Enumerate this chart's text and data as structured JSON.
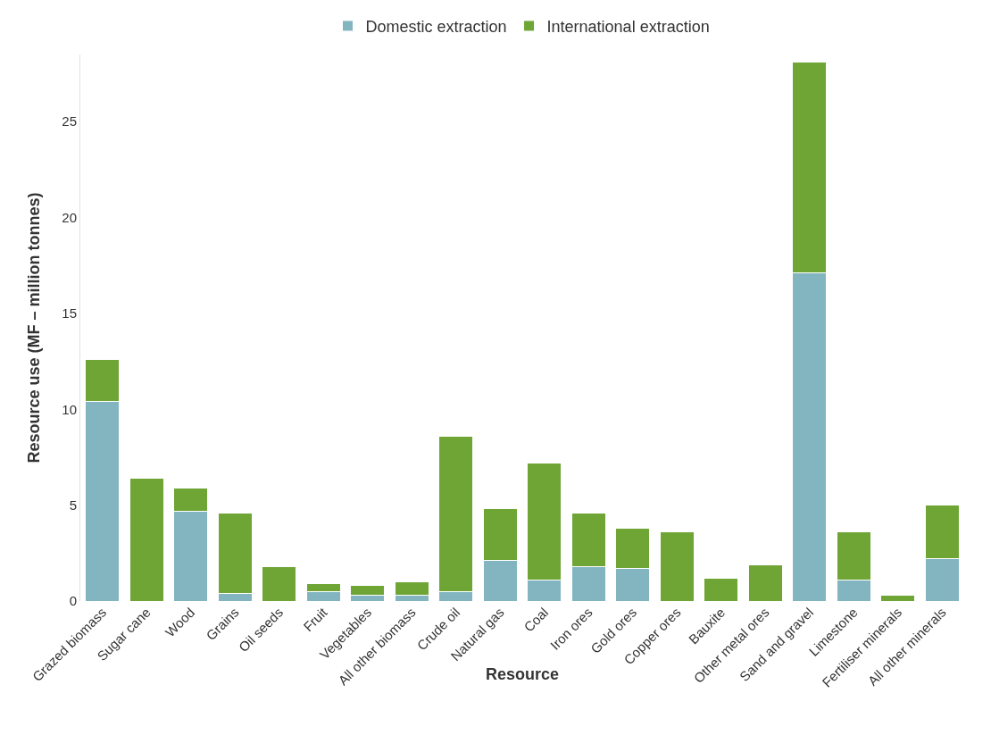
{
  "chart_data": {
    "type": "bar",
    "stacked": true,
    "xlabel": "Resource",
    "ylabel": "Resource use (MF – million tonnes)",
    "categories": [
      "Grazed biomass",
      "Sugar cane",
      "Wood",
      "Grains",
      "Oil seeds",
      "Fruit",
      "Vegetables",
      "All other biomass",
      "Crude oil",
      "Natural gas",
      "Coal",
      "Iron ores",
      "Gold ores",
      "Copper ores",
      "Bauxite",
      "Other metal ores",
      "Sand and gravel",
      "Limestone",
      "Fertiliser minerals",
      "All other minerals"
    ],
    "series": [
      {
        "name": "Domestic extraction",
        "color": "#82b5c0",
        "values": [
          10.4,
          0,
          4.7,
          0.4,
          0,
          0.5,
          0.3,
          0.3,
          0.5,
          2.1,
          1.1,
          1.8,
          1.7,
          0,
          0,
          0,
          17.1,
          1.1,
          0,
          2.2
        ]
      },
      {
        "name": "International extraction",
        "color": "#6ea535",
        "values": [
          2.2,
          6.4,
          1.2,
          4.2,
          1.8,
          0.4,
          0.5,
          0.7,
          8.1,
          2.7,
          6.1,
          2.8,
          2.1,
          3.6,
          1.2,
          1.9,
          11.0,
          2.5,
          0.3,
          2.8
        ]
      }
    ],
    "ylim": [
      0,
      28.5
    ],
    "yticks": [
      0,
      5,
      10,
      15,
      20,
      25
    ],
    "grid": false,
    "legend": "top"
  }
}
